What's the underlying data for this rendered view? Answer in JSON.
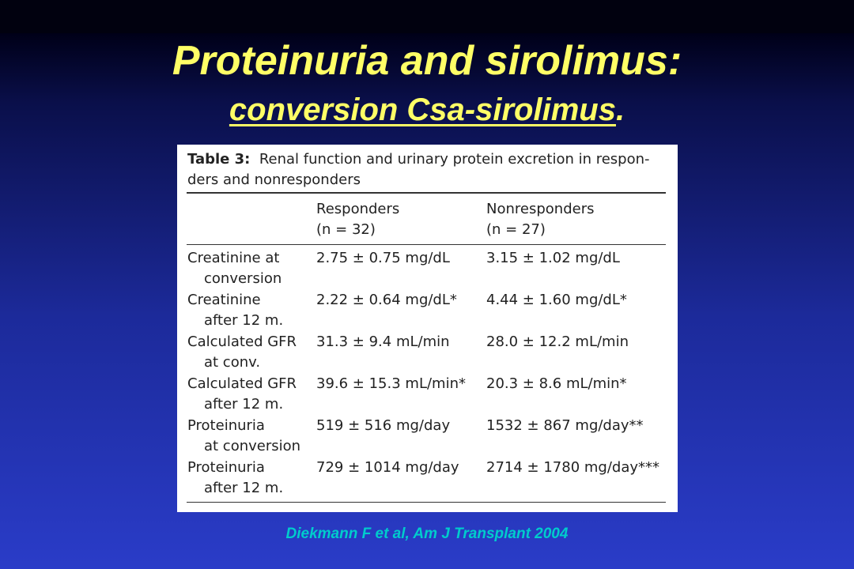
{
  "slide": {
    "title": "Proteinuria and sirolimus:",
    "subtitle_main": "conversion Csa-sirolimus",
    "subtitle_end": ".",
    "citation": "Diekmann F et al, Am J Transplant 2004"
  },
  "table": {
    "caption_label": "Table 3:",
    "caption_line1": "Renal function and urinary protein excretion in respon-",
    "caption_line2": "ders and nonresponders",
    "headers": [
      {
        "label": "Responders",
        "n": "(n = 32)"
      },
      {
        "label": "Nonresponders",
        "n": "(n = 27)"
      }
    ],
    "rows": [
      {
        "label1": "Creatinine at",
        "label2": "conversion",
        "responders": "2.75 ± 0.75 mg/dL",
        "nonresponders": "3.15 ± 1.02 mg/dL"
      },
      {
        "label1": "Creatinine",
        "label2": "after 12 m.",
        "responders": "2.22 ± 0.64 mg/dL*",
        "nonresponders": "4.44 ± 1.60 mg/dL*"
      },
      {
        "label1": "Calculated GFR",
        "label2": "at conv.",
        "responders": "31.3 ± 9.4 mL/min",
        "nonresponders": "28.0 ± 12.2 mL/min"
      },
      {
        "label1": "Calculated GFR",
        "label2": "after 12 m.",
        "responders": "39.6 ± 15.3 mL/min*",
        "nonresponders": "20.3 ± 8.6 mL/min*"
      },
      {
        "label1": "Proteinuria",
        "label2": "at conversion",
        "responders": "519 ± 516 mg/day",
        "nonresponders": "1532 ± 867 mg/day**"
      },
      {
        "label1": "Proteinuria",
        "label2": "after 12 m.",
        "responders": "729 ± 1014 mg/day",
        "nonresponders": "2714 ± 1780 mg/day***"
      }
    ]
  },
  "colors": {
    "title": "#ffff66",
    "citation": "#00cccc",
    "background_top": "#000018",
    "background_bottom": "#2a3cc8"
  }
}
